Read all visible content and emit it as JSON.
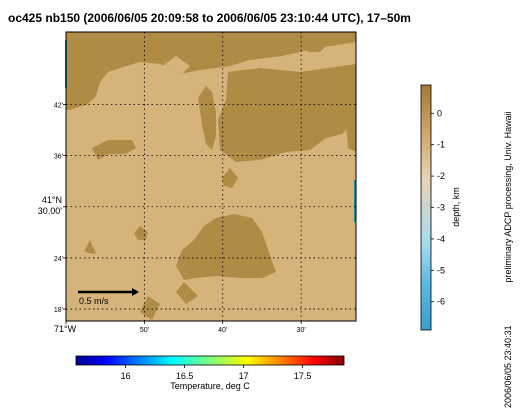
{
  "chart_data": {
    "type": "heatmap",
    "title": "oc425 nb150 (2006/06/05 20:09:58 to 2006/06/05 23:10:44 UTC), 17–50m",
    "map": {
      "lat_ticks": [
        {
          "label": "42'",
          "lat": 41.7
        },
        {
          "label": "36'",
          "lat": 41.6
        },
        {
          "label": "41°N",
          "label2": "30.00'",
          "lat": 41.5
        },
        {
          "label": "24'",
          "lat": 41.4
        },
        {
          "label": "18'",
          "lat": 41.3
        }
      ],
      "lon_ticks": [
        {
          "label": "71°W",
          "lon": -71.0
        },
        {
          "label": "50'",
          "lon": -70.8333
        },
        {
          "label": "40'",
          "lon": -70.6667
        },
        {
          "label": "30'",
          "lon": -70.5
        }
      ],
      "xlim": [
        -71.0,
        -70.3833
      ],
      "ylim": [
        41.2767,
        41.8417
      ],
      "grid": true,
      "scale_arrow_label": "0.5 m/s",
      "scale_arrow_value_mps": 0.5
    },
    "depth_colorbar": {
      "label": "depth, km",
      "ticks": [
        0,
        -1,
        -2,
        -3,
        -4,
        -5,
        -6
      ],
      "range": [
        -6.9,
        0.9
      ],
      "colors": [
        "#3a9fd0",
        "#7ccbe8",
        "#bfe3f0",
        "#f0dcc4",
        "#dbb98a",
        "#c59a5a",
        "#a57a32"
      ]
    },
    "temperature_colorbar": {
      "label": "Temperature, deg C",
      "ticks": [
        16,
        16.5,
        17,
        17.5
      ],
      "range": [
        15.58,
        17.85
      ]
    },
    "credit": "preliminary ADCP processing,   Univ. Hawaii",
    "timestamp": "2006/06/05 23:40:31",
    "colors": {
      "land_dark": "#b08b45",
      "land_light": "#d6b37b",
      "frame": "#000000",
      "water_edge": "#1c8a9a"
    }
  }
}
